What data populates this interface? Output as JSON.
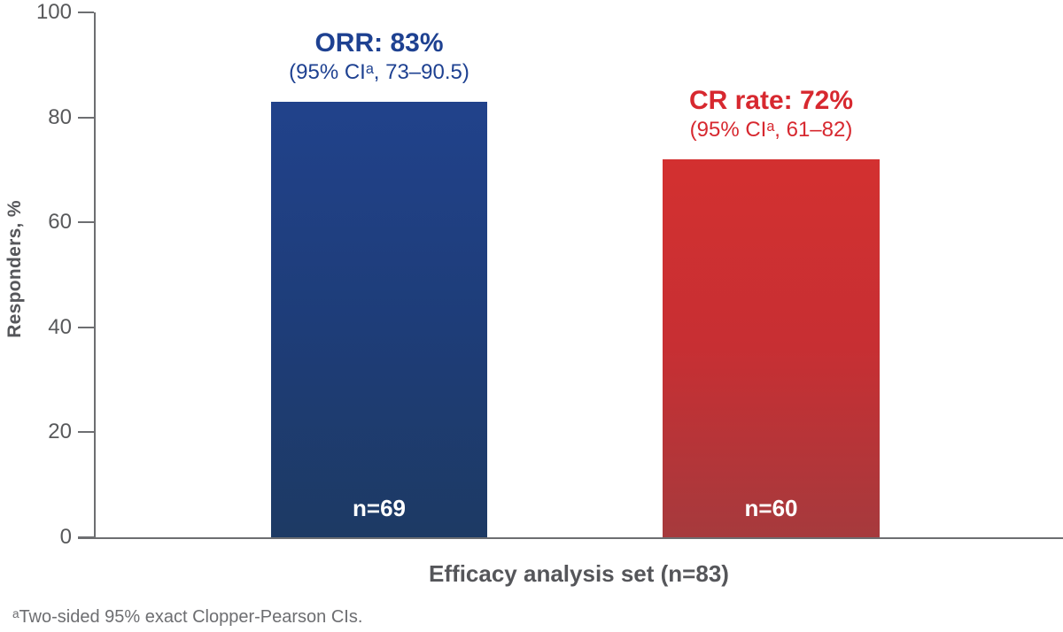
{
  "chart_data": {
    "type": "bar",
    "title": "",
    "ylabel": "Responders, %",
    "xlabel": "Efficacy analysis set (n=83)",
    "ylim": [
      0,
      100
    ],
    "yticks": [
      0,
      20,
      40,
      60,
      80,
      100
    ],
    "grid": false,
    "legend": "none",
    "categories": [
      "ORR",
      "CR rate"
    ],
    "series": [
      {
        "name": "ORR",
        "value": 83,
        "n_label": "n=69",
        "headline": "ORR: 83%",
        "ci_line": "(95% CIᵃ, 73–90.5)",
        "color_top": "#21428b",
        "color_mid": "#1e3d79",
        "color_bottom": "#1d3a64",
        "text_color": "#1e4191"
      },
      {
        "name": "CR rate",
        "value": 72,
        "n_label": "n=60",
        "headline": "CR rate: 72%",
        "ci_line": "(95% CIᵃ, 61–82)",
        "color_top": "#d33030",
        "color_mid": "#c72f33",
        "color_bottom": "#a63a3d",
        "text_color": "#d7282f"
      }
    ],
    "footnote": "ᵃTwo-sided 95% exact Clopper-Pearson CIs.",
    "axis_color": "#6d6e71",
    "tick_label_color": "#58595b"
  }
}
